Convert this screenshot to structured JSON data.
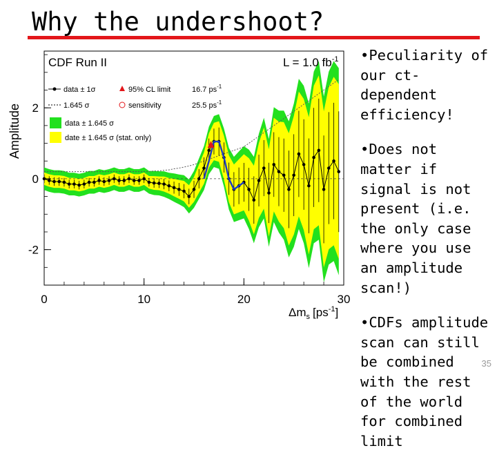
{
  "slide": {
    "title": "Why the undershoot?",
    "bullets": [
      "•Peculiarity of our ct-dependent efficiency!",
      "•Does not matter if signal is not present (i.e. the only case where you use an amplitude scan!)",
      "•CDFs amplitude scan can still be combined with the rest of the world for combined limit"
    ],
    "page_number": "35",
    "accent_color": "#e3161a"
  },
  "chart_data": {
    "type": "line",
    "experiment_label": "CDF Run II",
    "luminosity_label": "L = 1.0 fb",
    "luminosity_sup": "-1",
    "xlabel": "Δm",
    "xlabel_sub": "s",
    "xlabel_unit": "[ps",
    "xlabel_unit_sup": "-1",
    "xlabel_close": "]",
    "ylabel": "Amplitude",
    "xlim": [
      0,
      30
    ],
    "ylim": [
      -3,
      3.6
    ],
    "xticks": [
      "0",
      "10",
      "20",
      "30"
    ],
    "yticks": [
      "-2",
      "0",
      "2"
    ],
    "ytick_values": [
      -2,
      0,
      2
    ],
    "xtick_values": [
      0,
      10,
      20,
      30
    ],
    "legend": {
      "data_1sigma": "data ± 1σ",
      "cl_limit": "95% CL limit",
      "cl_limit_value": "16.7 ps",
      "cl_limit_sup": "-1",
      "sigma_1645": "1.645 σ",
      "sensitivity": "sensitivity",
      "sensitivity_value": "25.5 ps",
      "sensitivity_sup": "-1",
      "green_band": "data ± 1.645 σ",
      "yellow_band": "date ± 1.645 σ (stat. only)"
    },
    "colors": {
      "green_band": "#22e01e",
      "yellow_band": "#ffff00",
      "data": "#000000",
      "fit": "#1f3fbf",
      "cl_marker": "#e3161a"
    },
    "x": [
      0.0,
      0.5,
      1.0,
      1.5,
      2.0,
      2.5,
      3.0,
      3.5,
      4.0,
      4.5,
      5.0,
      5.5,
      6.0,
      6.5,
      7.0,
      7.5,
      8.0,
      8.5,
      9.0,
      9.5,
      10.0,
      10.5,
      11.0,
      11.5,
      12.0,
      12.5,
      13.0,
      13.5,
      14.0,
      14.5,
      15.0,
      15.5,
      16.0,
      16.5,
      17.0,
      17.5,
      18.0,
      18.5,
      19.0,
      19.5,
      20.0,
      20.5,
      21.0,
      21.5,
      22.0,
      22.5,
      23.0,
      23.5,
      24.0,
      24.5,
      25.0,
      25.5,
      26.0,
      26.5,
      27.0,
      27.5,
      28.0,
      28.5,
      29.0,
      29.5
    ],
    "amplitude": [
      0.0,
      -0.05,
      -0.08,
      -0.08,
      -0.1,
      -0.15,
      -0.15,
      -0.18,
      -0.15,
      -0.1,
      -0.1,
      -0.05,
      -0.08,
      -0.05,
      0.0,
      -0.05,
      -0.05,
      0.0,
      -0.05,
      -0.05,
      0.0,
      -0.1,
      -0.12,
      -0.13,
      -0.15,
      -0.2,
      -0.25,
      -0.3,
      -0.35,
      -0.5,
      -0.3,
      0.0,
      0.3,
      0.8,
      1.05,
      1.05,
      0.6,
      0.0,
      -0.3,
      -0.2,
      -0.1,
      -0.3,
      -0.6,
      -0.05,
      0.3,
      -0.4,
      0.4,
      0.2,
      0.1,
      -0.3,
      0.1,
      0.7,
      0.4,
      -0.2,
      0.6,
      0.8,
      -0.3,
      0.3,
      0.5,
      0.2
    ],
    "sigma_total_1645": [
      0.2,
      0.2,
      0.2,
      0.2,
      0.2,
      0.2,
      0.2,
      0.2,
      0.2,
      0.2,
      0.2,
      0.2,
      0.2,
      0.2,
      0.2,
      0.2,
      0.2,
      0.2,
      0.2,
      0.2,
      0.2,
      0.2,
      0.22,
      0.22,
      0.24,
      0.25,
      0.28,
      0.3,
      0.33,
      0.36,
      0.4,
      0.45,
      0.5,
      0.55,
      0.6,
      0.65,
      0.7,
      0.75,
      0.8,
      0.85,
      0.9,
      1.0,
      1.1,
      1.2,
      1.3,
      1.4,
      1.5,
      1.6,
      1.7,
      1.8,
      1.9,
      2.0,
      2.1,
      2.2,
      2.3,
      2.4,
      2.5,
      2.6,
      2.7,
      2.8
    ],
    "fit_x": [
      16.0,
      16.5,
      17.0,
      17.5,
      18.0,
      18.5,
      19.0,
      19.5,
      20.0
    ],
    "fit_y": [
      0.0,
      0.5,
      1.05,
      1.05,
      0.6,
      0.0,
      -0.3,
      -0.2,
      -0.1
    ],
    "cl_limit_x": 16.7,
    "cl_limit_y": 0.95,
    "sensitivity_x": 25.5
  }
}
